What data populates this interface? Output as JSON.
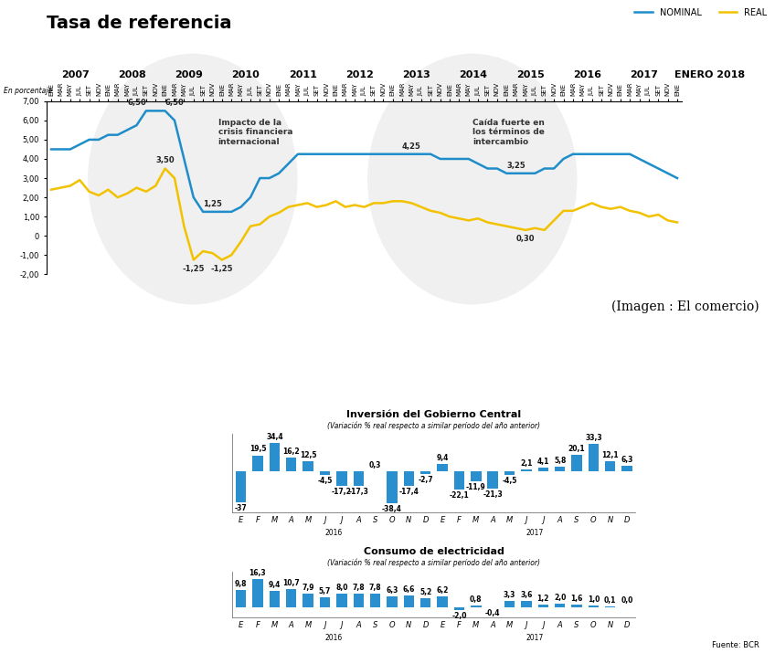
{
  "credit": "(Imagen : El comercio)",
  "chart_data": [
    {
      "type": "line",
      "title": "Tasa de referencia",
      "y_label": "En porcentaje",
      "legend": "upper right",
      "grid": false,
      "categories": [
        "ENE",
        "MAR",
        "MAY",
        "JUL",
        "SET",
        "NOV",
        "ENE",
        "MAR",
        "MAY",
        "JUL",
        "SET",
        "NOV",
        "ENE",
        "MAR",
        "MAY",
        "JUL",
        "SET",
        "NOV",
        "ENE",
        "MAR",
        "MAY",
        "JUL",
        "SET",
        "NOV",
        "ENE",
        "MAR",
        "MAY",
        "JUL",
        "SET",
        "NOV",
        "ENE",
        "MAR",
        "MAY",
        "JUL",
        "SET",
        "NOV",
        "ENE",
        "MAR",
        "MAY",
        "JUL",
        "SET",
        "NOV",
        "ENE",
        "MAR",
        "MAY",
        "JUL",
        "SET",
        "NOV",
        "ENE",
        "MAR",
        "MAY",
        "JUL",
        "SET",
        "NOV",
        "ENE",
        "MAR",
        "MAY",
        "JUL",
        "SET",
        "NOV",
        "ENE",
        "MAR",
        "MAY",
        "JUL",
        "SET",
        "NOV",
        "ENE"
      ],
      "year_labels": [
        "2007",
        "2008",
        "2009",
        "2010",
        "2011",
        "2012",
        "2013",
        "2014",
        "2015",
        "2016",
        "2017",
        "ENERO 2018"
      ],
      "series": [
        {
          "name": "NOMINAL",
          "color": "#1f8dc9",
          "values": [
            4.5,
            4.5,
            4.5,
            4.75,
            5.0,
            5.0,
            5.25,
            5.25,
            5.5,
            5.75,
            6.5,
            6.5,
            6.5,
            6.0,
            4.0,
            2.0,
            1.25,
            1.25,
            1.25,
            1.25,
            1.5,
            2.0,
            3.0,
            3.0,
            3.25,
            3.75,
            4.25,
            4.25,
            4.25,
            4.25,
            4.25,
            4.25,
            4.25,
            4.25,
            4.25,
            4.25,
            4.25,
            4.25,
            4.25,
            4.25,
            4.25,
            4.0,
            4.0,
            4.0,
            4.0,
            3.75,
            3.5,
            3.5,
            3.25,
            3.25,
            3.25,
            3.25,
            3.5,
            3.5,
            4.0,
            4.25,
            4.25,
            4.25,
            4.25,
            4.25,
            4.25,
            4.25,
            4.0,
            3.75,
            3.5,
            3.25,
            3.0
          ]
        },
        {
          "name": "REAL",
          "color": "#f2c200",
          "values": [
            2.4,
            2.5,
            2.6,
            2.9,
            2.3,
            2.1,
            2.4,
            2.0,
            2.2,
            2.5,
            2.3,
            2.6,
            3.5,
            3.0,
            0.5,
            -1.25,
            -0.8,
            -0.9,
            -1.25,
            -1.0,
            -0.3,
            0.5,
            0.6,
            1.0,
            1.2,
            1.5,
            1.6,
            1.7,
            1.5,
            1.6,
            1.8,
            1.5,
            1.6,
            1.5,
            1.7,
            1.7,
            1.8,
            1.8,
            1.7,
            1.5,
            1.3,
            1.2,
            1.0,
            0.9,
            0.8,
            0.9,
            0.7,
            0.6,
            0.5,
            0.4,
            0.3,
            0.4,
            0.3,
            0.8,
            1.3,
            1.3,
            1.5,
            1.7,
            1.5,
            1.4,
            1.5,
            1.3,
            1.2,
            1.0,
            1.1,
            0.8,
            0.7
          ]
        }
      ],
      "ylim": [
        -2,
        7
      ],
      "yticks": [
        {
          "value": -2,
          "label": "-2,00"
        },
        {
          "value": -1,
          "label": "-1,00"
        },
        0,
        {
          "value": 1,
          "label": "1,00"
        },
        {
          "value": 2,
          "label": "2,00"
        },
        {
          "value": 3,
          "label": "3,00"
        },
        {
          "value": 4,
          "label": "4,00"
        },
        {
          "value": 5,
          "label": "5,00"
        },
        {
          "value": 6,
          "label": "6,00"
        },
        {
          "value": 7,
          "label": "7,00"
        }
      ],
      "annotations": [
        {
          "series": "NOMINAL",
          "index": 10,
          "value": 6.5,
          "label": "6,50"
        },
        {
          "series": "NOMINAL",
          "index": 12,
          "value": 6.5,
          "label": "6,50"
        },
        {
          "series": "REAL",
          "index": 12,
          "value": 3.5,
          "label": "3,50"
        },
        {
          "series": "NOMINAL",
          "index": 17,
          "value": 1.25,
          "label": "1,25"
        },
        {
          "series": "REAL",
          "index": 15,
          "value": -1.25,
          "label": "-1,25"
        },
        {
          "series": "REAL",
          "index": 18,
          "value": -1.25,
          "label": "-1,25"
        },
        {
          "series": "NOMINAL",
          "index": 38,
          "value": 4.25,
          "label": "4,25"
        },
        {
          "series": "NOMINAL",
          "index": 49,
          "value": 3.25,
          "label": "3,25"
        },
        {
          "series": "REAL",
          "index": 50,
          "value": 0.3,
          "label": "0,30"
        }
      ],
      "regions": [
        "Impacto de la\ncrisis financiera\ninternacional",
        "Caída fuerte en\nlos términos de\nintercambio"
      ]
    },
    {
      "type": "bar",
      "title": "Inversión del Gobierno Central",
      "subtitle": "(Variación % real respecto a similar período del año anterior)",
      "categories": [
        "E",
        "F",
        "M",
        "A",
        "M",
        "J",
        "J",
        "A",
        "S",
        "O",
        "N",
        "D",
        "E",
        "F",
        "M",
        "A",
        "M",
        "J",
        "J",
        "A",
        "S",
        "O",
        "N",
        "D"
      ],
      "year_labels": [
        "2016",
        "2017"
      ],
      "values": [
        -37,
        19.5,
        34.4,
        16.2,
        12.5,
        -4.5,
        -17.2,
        -17.3,
        0.3,
        -38.4,
        -17.4,
        -2.7,
        9.4,
        -22.1,
        -11.9,
        -21.3,
        -4.5,
        2.1,
        4.1,
        5.8,
        20.1,
        33.3,
        12.1,
        6.3
      ],
      "value_labels": [
        "-37",
        "19,5",
        "34,4",
        "16,2",
        "12,5",
        "-4,5",
        "-17,2",
        "-17,3",
        "0,3",
        "-38,4",
        "-17,4",
        "-2,7",
        "9,4",
        "-22,1",
        "-11,9",
        "-21,3",
        "-4,5",
        "2,1",
        "4,1",
        "5,8",
        "20,1",
        "33,3",
        "12,1",
        "6,3"
      ],
      "color": "#2a8fcf",
      "ylim": [
        -50,
        45
      ],
      "data_labels": true,
      "tick_labels": "x"
    },
    {
      "type": "bar",
      "title": "Consumo de electricidad",
      "subtitle": "(Variación % real respecto a similar período del año anterior)",
      "categories": [
        "E",
        "F",
        "M",
        "A",
        "M",
        "J",
        "J",
        "A",
        "S",
        "O",
        "N",
        "D",
        "E",
        "F",
        "M",
        "A",
        "M",
        "J",
        "J",
        "A",
        "S",
        "O",
        "N",
        "D"
      ],
      "year_labels": [
        "2016",
        "2017"
      ],
      "values": [
        9.8,
        16.3,
        9.4,
        10.7,
        7.9,
        5.7,
        8.0,
        7.8,
        7.8,
        6.3,
        6.6,
        5.2,
        6.2,
        -2.0,
        0.8,
        -0.4,
        3.3,
        3.6,
        1.2,
        2.0,
        1.6,
        1.0,
        0.1,
        0.0
      ],
      "value_labels": [
        "9,8",
        "16,3",
        "9,4",
        "10,7",
        "7,9",
        "5,7",
        "8,0",
        "7,8",
        "7,8",
        "6,3",
        "6,6",
        "5,2",
        "6,2",
        "-2,0",
        "0,8",
        "-0,4",
        "3,3",
        "3,6",
        "1,2",
        "2,0",
        "1,6",
        "1,0",
        "0,1",
        "0,0"
      ],
      "color": "#2a8fcf",
      "ylim": [
        -6,
        21
      ],
      "data_labels": true,
      "tick_labels": "x",
      "source": "Fuente: BCR"
    }
  ]
}
